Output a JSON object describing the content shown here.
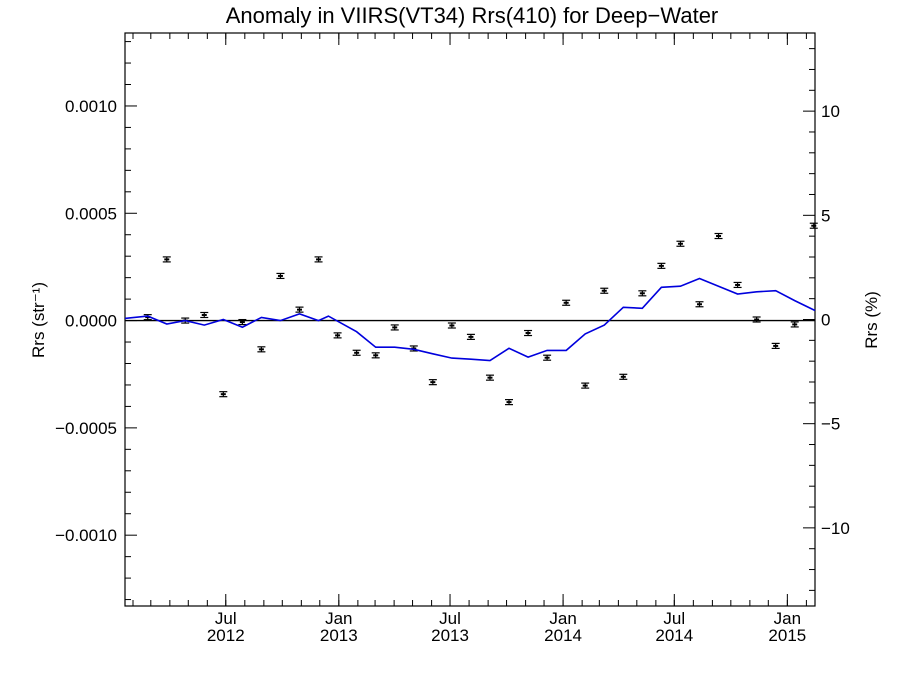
{
  "chart_data": {
    "type": "line",
    "title": "Anomaly in VIIRS(VT34) Rrs(410) for Deep−Water",
    "ylabel_left": "Rrs (str⁻¹)",
    "ylabel_right": "Rrs (%)",
    "xlim": [
      "2012-01-19",
      "2015-02-15"
    ],
    "ylim_left": [
      -0.00133,
      0.00134
    ],
    "ylim_right": [
      -13.75,
      13.75
    ],
    "x_ticks": [
      {
        "date": "2012-07-01",
        "month": "Jul",
        "year": "2012"
      },
      {
        "date": "2013-01-01",
        "month": "Jan",
        "year": "2013"
      },
      {
        "date": "2013-07-01",
        "month": "Jul",
        "year": "2013"
      },
      {
        "date": "2014-01-01",
        "month": "Jan",
        "year": "2014"
      },
      {
        "date": "2014-07-01",
        "month": "Jul",
        "year": "2014"
      },
      {
        "date": "2015-01-01",
        "month": "Jan",
        "year": "2015"
      }
    ],
    "y_ticks_left": [
      {
        "value": 0.001,
        "label": "0.0010"
      },
      {
        "value": 0.0005,
        "label": "0.0005"
      },
      {
        "value": 0.0,
        "label": "0.0000"
      },
      {
        "value": -0.0005,
        "label": "−0.0005"
      },
      {
        "value": -0.001,
        "label": "−0.0010"
      }
    ],
    "y_ticks_right": [
      {
        "value": 10,
        "label": "10"
      },
      {
        "value": 5,
        "label": "5"
      },
      {
        "value": 0,
        "label": "0"
      },
      {
        "value": -5,
        "label": "−5"
      },
      {
        "value": -10,
        "label": "−10"
      }
    ],
    "zero_line": 0,
    "series": [
      {
        "type": "scatter",
        "marker": "errorbar",
        "color": "#000000",
        "points": [
          {
            "x": "2012-02-25",
            "y": 1.6e-05
          },
          {
            "x": "2012-03-27",
            "y": 0.000285
          },
          {
            "x": "2012-04-26",
            "y": 0.0
          },
          {
            "x": "2012-05-27",
            "y": 2.6e-05
          },
          {
            "x": "2012-06-27",
            "y": -0.000343
          },
          {
            "x": "2012-07-28",
            "y": -7e-06
          },
          {
            "x": "2012-08-28",
            "y": -0.000134
          },
          {
            "x": "2012-09-28",
            "y": 0.000208
          },
          {
            "x": "2012-10-29",
            "y": 5.1e-05
          },
          {
            "x": "2012-11-29",
            "y": 0.000285
          },
          {
            "x": "2012-12-30",
            "y": -6.9e-05
          },
          {
            "x": "2013-01-30",
            "y": -0.00015
          },
          {
            "x": "2013-03-02",
            "y": -0.000162
          },
          {
            "x": "2013-04-02",
            "y": -3.2e-05
          },
          {
            "x": "2013-05-03",
            "y": -0.00013
          },
          {
            "x": "2013-06-03",
            "y": -0.000287
          },
          {
            "x": "2013-07-04",
            "y": -2.3e-05
          },
          {
            "x": "2013-08-04",
            "y": -7.6e-05
          },
          {
            "x": "2013-09-04",
            "y": -0.000266
          },
          {
            "x": "2013-10-05",
            "y": -0.00038
          },
          {
            "x": "2013-11-05",
            "y": -5.8e-05
          },
          {
            "x": "2013-12-06",
            "y": -0.000173
          },
          {
            "x": "2014-01-06",
            "y": 8.3e-05
          },
          {
            "x": "2014-02-06",
            "y": -0.000303
          },
          {
            "x": "2014-03-09",
            "y": 0.000139
          },
          {
            "x": "2014-04-09",
            "y": -0.000262
          },
          {
            "x": "2014-05-10",
            "y": 0.000127
          },
          {
            "x": "2014-06-10",
            "y": 0.000255
          },
          {
            "x": "2014-07-11",
            "y": 0.000358
          },
          {
            "x": "2014-08-11",
            "y": 7.6e-05
          },
          {
            "x": "2014-09-11",
            "y": 0.000394
          },
          {
            "x": "2014-10-12",
            "y": 0.000166
          },
          {
            "x": "2014-11-12",
            "y": 5e-06
          },
          {
            "x": "2014-12-13",
            "y": -0.000118
          },
          {
            "x": "2015-01-13",
            "y": -1.8e-05
          },
          {
            "x": "2015-02-13",
            "y": 0.000442
          }
        ]
      },
      {
        "type": "line",
        "color": "#0000dd",
        "points": [
          {
            "x": "2012-01-19",
            "y": 1e-05
          },
          {
            "x": "2012-02-25",
            "y": 2.1e-05
          },
          {
            "x": "2012-03-27",
            "y": -1.6e-05
          },
          {
            "x": "2012-04-26",
            "y": 0.0
          },
          {
            "x": "2012-05-27",
            "y": -2.1e-05
          },
          {
            "x": "2012-06-27",
            "y": 5e-06
          },
          {
            "x": "2012-07-28",
            "y": -3.1e-05
          },
          {
            "x": "2012-08-28",
            "y": 1.5e-05
          },
          {
            "x": "2012-09-28",
            "y": 0.0
          },
          {
            "x": "2012-10-29",
            "y": 3.1e-05
          },
          {
            "x": "2012-11-29",
            "y": 0.0
          },
          {
            "x": "2012-12-15",
            "y": 2.1e-05
          },
          {
            "x": "2013-01-30",
            "y": -5.2e-05
          },
          {
            "x": "2013-03-02",
            "y": -0.000124
          },
          {
            "x": "2013-04-02",
            "y": -0.000124
          },
          {
            "x": "2013-05-03",
            "y": -0.000134
          },
          {
            "x": "2013-06-03",
            "y": -0.000155
          },
          {
            "x": "2013-07-04",
            "y": -0.000175
          },
          {
            "x": "2013-08-04",
            "y": -0.00018
          },
          {
            "x": "2013-09-04",
            "y": -0.000186
          },
          {
            "x": "2013-10-05",
            "y": -0.000129
          },
          {
            "x": "2013-11-05",
            "y": -0.00017
          },
          {
            "x": "2013-12-06",
            "y": -0.000139
          },
          {
            "x": "2014-01-06",
            "y": -0.000139
          },
          {
            "x": "2014-02-06",
            "y": -6.2e-05
          },
          {
            "x": "2014-03-09",
            "y": -2.1e-05
          },
          {
            "x": "2014-04-09",
            "y": 6.2e-05
          },
          {
            "x": "2014-05-10",
            "y": 5.7e-05
          },
          {
            "x": "2014-06-10",
            "y": 0.000155
          },
          {
            "x": "2014-07-11",
            "y": 0.00016
          },
          {
            "x": "2014-08-11",
            "y": 0.000196
          },
          {
            "x": "2014-09-11",
            "y": 0.00016
          },
          {
            "x": "2014-10-12",
            "y": 0.000124
          },
          {
            "x": "2014-11-12",
            "y": 0.000134
          },
          {
            "x": "2014-12-13",
            "y": 0.000139
          },
          {
            "x": "2015-01-13",
            "y": 9.3e-05
          },
          {
            "x": "2015-02-15",
            "y": 4.7e-05
          }
        ]
      }
    ]
  }
}
